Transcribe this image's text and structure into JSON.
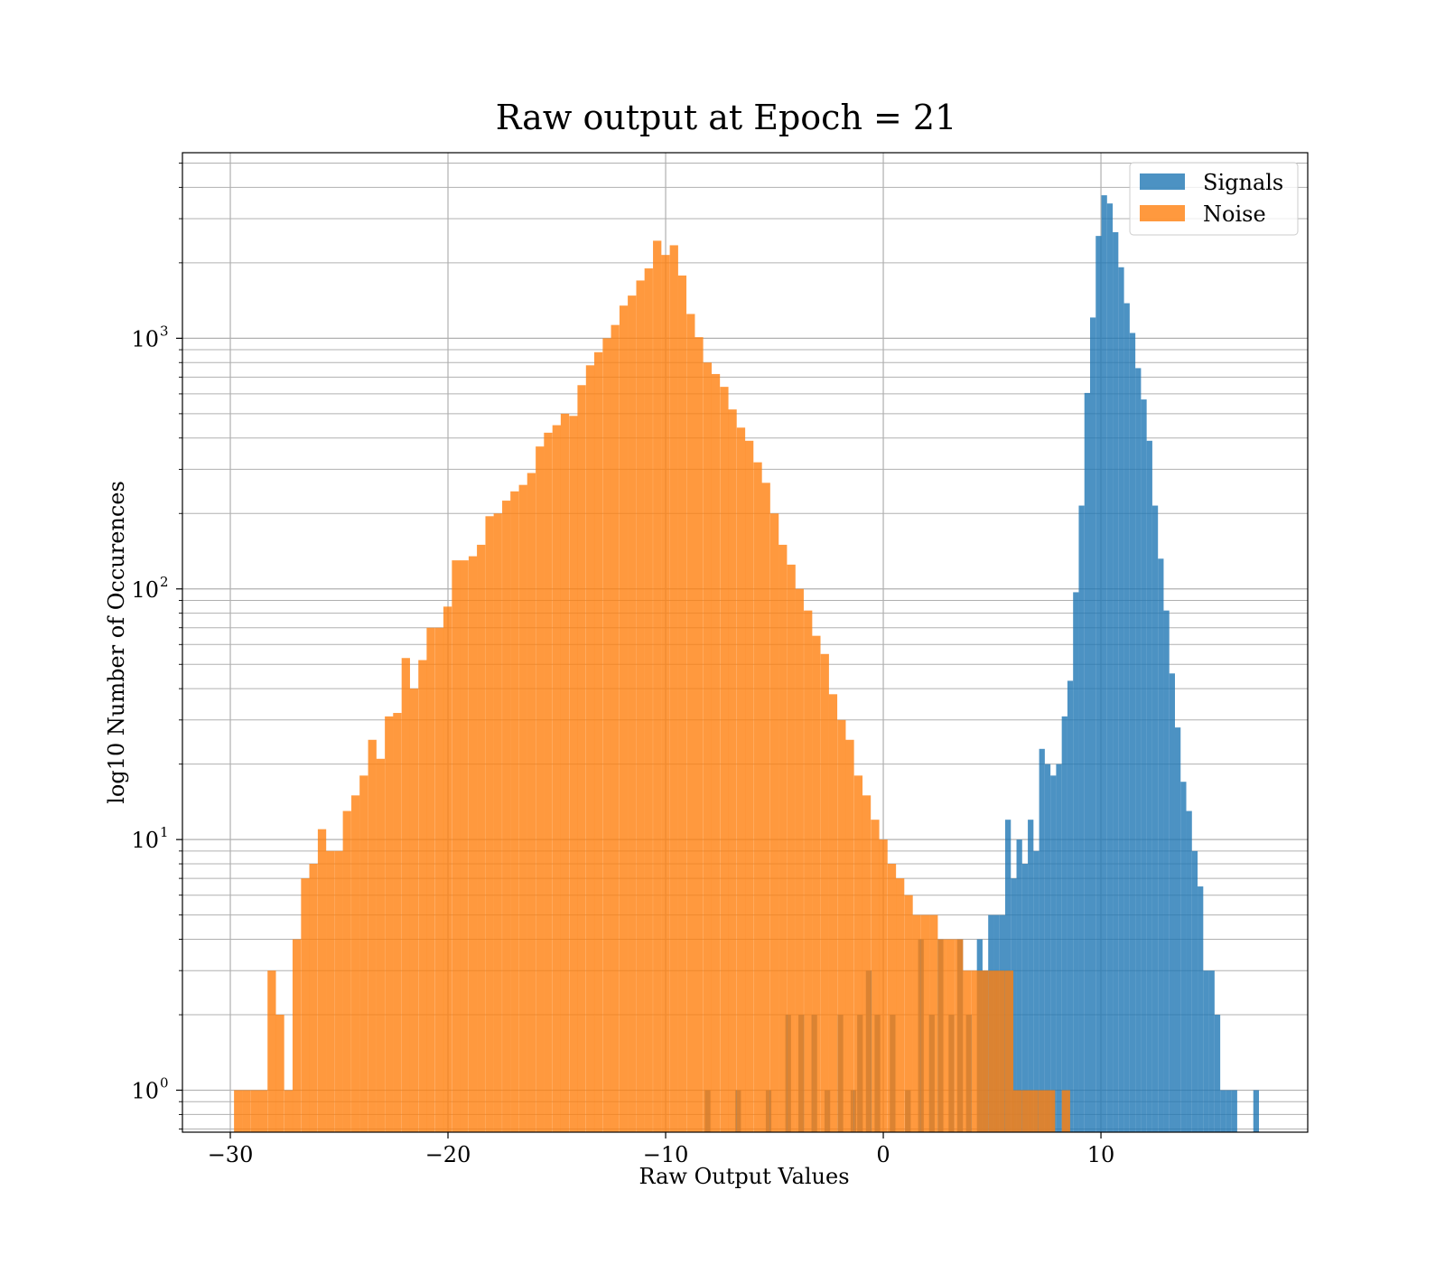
{
  "chart_data": {
    "type": "bar",
    "title": "Raw output at Epoch = 21",
    "xlabel": "Raw Output Values",
    "ylabel": "log10 Number of Occurences",
    "xlim": [
      -32.2,
      19.5
    ],
    "ylim": [
      0.68,
      5500
    ],
    "yscale": "log",
    "grid": true,
    "legend_position": "top-right",
    "x_ticks": [
      -30,
      -20,
      -10,
      0,
      10
    ],
    "x_tick_labels": [
      "−30",
      "−20",
      "−10",
      "0",
      "10"
    ],
    "y_ticks": [
      {
        "value": 1,
        "base": "10",
        "exp": "0"
      },
      {
        "value": 10,
        "base": "10",
        "exp": "1"
      },
      {
        "value": 100,
        "base": "10",
        "exp": "2"
      },
      {
        "value": 1000,
        "base": "10",
        "exp": "3"
      }
    ],
    "colors": {
      "signals": "#1f77b4",
      "noise": "#ff7f0e",
      "grid": "#b0b0b0",
      "axes": "#000000"
    },
    "series": [
      {
        "name": "Signals",
        "color": "#1f77b4",
        "opacity": 0.8,
        "bin_width": 0.26,
        "bins": [
          [
            -8.2,
            1
          ],
          [
            -6.8,
            1
          ],
          [
            -5.4,
            1
          ],
          [
            -4.5,
            2
          ],
          [
            -3.9,
            2
          ],
          [
            -3.3,
            2
          ],
          [
            -2.7,
            1
          ],
          [
            -2.1,
            2
          ],
          [
            -1.5,
            1
          ],
          [
            -1.2,
            2
          ],
          [
            -0.8,
            3
          ],
          [
            -0.4,
            2
          ],
          [
            0.3,
            2
          ],
          [
            1.0,
            1
          ],
          [
            1.6,
            4
          ],
          [
            2.1,
            2
          ],
          [
            2.5,
            4
          ],
          [
            3.0,
            2
          ],
          [
            3.4,
            4
          ],
          [
            3.8,
            2
          ],
          [
            4.3,
            4
          ],
          [
            4.56,
            3
          ],
          [
            4.82,
            5
          ],
          [
            5.08,
            5
          ],
          [
            5.34,
            5
          ],
          [
            5.6,
            12
          ],
          [
            5.86,
            7
          ],
          [
            6.12,
            10
          ],
          [
            6.38,
            8
          ],
          [
            6.64,
            12
          ],
          [
            6.9,
            9
          ],
          [
            7.16,
            23
          ],
          [
            7.42,
            20
          ],
          [
            7.68,
            18
          ],
          [
            7.94,
            20
          ],
          [
            8.2,
            31
          ],
          [
            8.46,
            43
          ],
          [
            8.72,
            97
          ],
          [
            8.98,
            215
          ],
          [
            9.24,
            605
          ],
          [
            9.5,
            1210
          ],
          [
            9.76,
            2560
          ],
          [
            10.02,
            3720
          ],
          [
            10.28,
            3450
          ],
          [
            10.54,
            2650
          ],
          [
            10.8,
            1920
          ],
          [
            11.06,
            1380
          ],
          [
            11.32,
            1050
          ],
          [
            11.58,
            760
          ],
          [
            11.84,
            570
          ],
          [
            12.1,
            390
          ],
          [
            12.36,
            215
          ],
          [
            12.62,
            132
          ],
          [
            12.88,
            82
          ],
          [
            13.14,
            46
          ],
          [
            13.4,
            28
          ],
          [
            13.66,
            17
          ],
          [
            13.92,
            13
          ],
          [
            14.18,
            9
          ],
          [
            14.44,
            6.5
          ],
          [
            14.7,
            3
          ],
          [
            14.96,
            3
          ],
          [
            15.22,
            2
          ],
          [
            15.48,
            1
          ],
          [
            15.74,
            1
          ],
          [
            16.0,
            1
          ],
          [
            17.0,
            1
          ]
        ]
      },
      {
        "name": "Noise",
        "color": "#ff7f0e",
        "opacity": 0.8,
        "bin_width": 0.385,
        "bins": [
          [
            -29.83,
            1
          ],
          [
            -29.45,
            1
          ],
          [
            -29.06,
            1
          ],
          [
            -28.68,
            1
          ],
          [
            -28.29,
            3
          ],
          [
            -27.91,
            2
          ],
          [
            -27.52,
            1
          ],
          [
            -27.14,
            4
          ],
          [
            -26.75,
            7
          ],
          [
            -26.37,
            8
          ],
          [
            -25.98,
            11
          ],
          [
            -25.6,
            9
          ],
          [
            -25.21,
            9
          ],
          [
            -24.83,
            13
          ],
          [
            -24.44,
            15
          ],
          [
            -24.06,
            18
          ],
          [
            -23.67,
            25
          ],
          [
            -23.29,
            21
          ],
          [
            -22.9,
            31
          ],
          [
            -22.52,
            32
          ],
          [
            -22.13,
            53
          ],
          [
            -21.75,
            40
          ],
          [
            -21.36,
            52
          ],
          [
            -20.98,
            70
          ],
          [
            -20.59,
            70
          ],
          [
            -20.21,
            85
          ],
          [
            -19.82,
            130
          ],
          [
            -19.44,
            130
          ],
          [
            -19.05,
            135
          ],
          [
            -18.67,
            150
          ],
          [
            -18.28,
            195
          ],
          [
            -17.9,
            200
          ],
          [
            -17.51,
            225
          ],
          [
            -17.13,
            245
          ],
          [
            -16.74,
            260
          ],
          [
            -16.36,
            290
          ],
          [
            -15.97,
            370
          ],
          [
            -15.59,
            420
          ],
          [
            -15.2,
            450
          ],
          [
            -14.82,
            500
          ],
          [
            -14.43,
            490
          ],
          [
            -14.05,
            650
          ],
          [
            -13.66,
            780
          ],
          [
            -13.28,
            880
          ],
          [
            -12.89,
            1000
          ],
          [
            -12.51,
            1130
          ],
          [
            -12.12,
            1350
          ],
          [
            -11.74,
            1480
          ],
          [
            -11.35,
            1700
          ],
          [
            -10.97,
            1900
          ],
          [
            -10.58,
            2450
          ],
          [
            -10.2,
            2150
          ],
          [
            -9.81,
            2350
          ],
          [
            -9.43,
            1780
          ],
          [
            -9.04,
            1250
          ],
          [
            -8.66,
            1010
          ],
          [
            -8.27,
            800
          ],
          [
            -7.89,
            720
          ],
          [
            -7.5,
            640
          ],
          [
            -7.12,
            520
          ],
          [
            -6.73,
            440
          ],
          [
            -6.35,
            390
          ],
          [
            -5.96,
            320
          ],
          [
            -5.58,
            265
          ],
          [
            -5.19,
            200
          ],
          [
            -4.81,
            150
          ],
          [
            -4.42,
            125
          ],
          [
            -4.04,
            100
          ],
          [
            -3.65,
            82
          ],
          [
            -3.27,
            65
          ],
          [
            -2.88,
            55
          ],
          [
            -2.5,
            38
          ],
          [
            -2.11,
            30
          ],
          [
            -1.73,
            25
          ],
          [
            -1.34,
            18
          ],
          [
            -0.96,
            15
          ],
          [
            -0.57,
            12
          ],
          [
            -0.19,
            10
          ],
          [
            0.2,
            8
          ],
          [
            0.58,
            7
          ],
          [
            0.97,
            6
          ],
          [
            1.35,
            5
          ],
          [
            1.74,
            5
          ],
          [
            2.12,
            5
          ],
          [
            2.51,
            4
          ],
          [
            2.89,
            4
          ],
          [
            3.28,
            4
          ],
          [
            3.66,
            3
          ],
          [
            4.05,
            3
          ],
          [
            4.43,
            3
          ],
          [
            4.82,
            3
          ],
          [
            5.2,
            3
          ],
          [
            5.59,
            3
          ],
          [
            5.97,
            1
          ],
          [
            6.36,
            1
          ],
          [
            6.74,
            1
          ],
          [
            7.13,
            1
          ],
          [
            7.51,
            1
          ],
          [
            8.2,
            1
          ]
        ]
      }
    ]
  }
}
